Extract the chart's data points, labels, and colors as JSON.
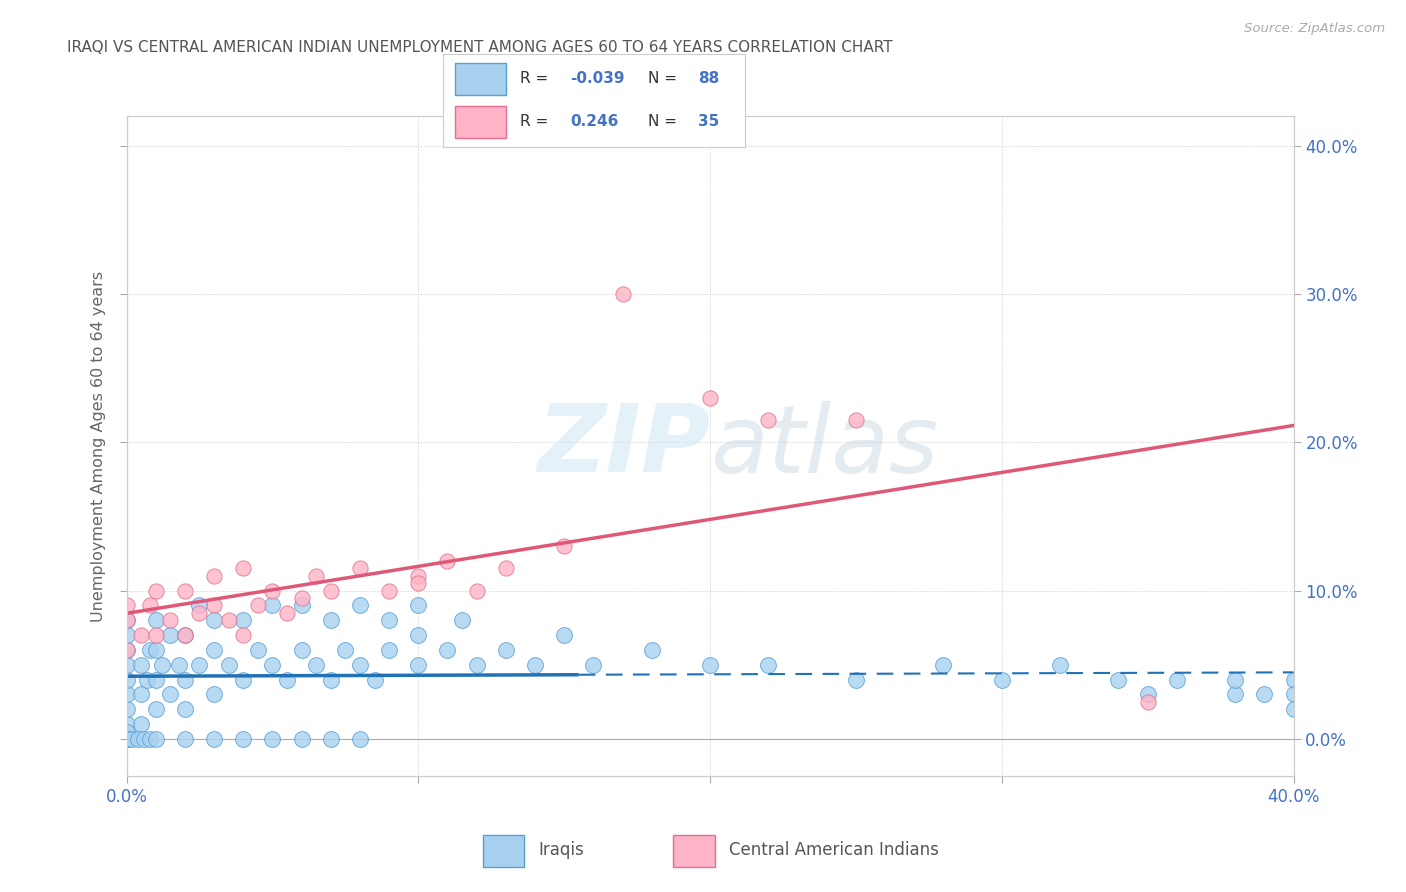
{
  "title": "IRAQI VS CENTRAL AMERICAN INDIAN UNEMPLOYMENT AMONG AGES 60 TO 64 YEARS CORRELATION CHART",
  "source": "Source: ZipAtlas.com",
  "ylabel": "Unemployment Among Ages 60 to 64 years",
  "xlim": [
    0.0,
    0.4
  ],
  "ylim": [
    -0.025,
    0.42
  ],
  "iraqi_color_fill": "#a8d1f0",
  "iraqi_color_edge": "#5a9fd4",
  "iraqi_line_color": "#2171b5",
  "central_color_fill": "#ffb3c6",
  "central_color_edge": "#e07090",
  "central_line_color": "#e05878",
  "iraqi_R": -0.039,
  "iraqi_N": 88,
  "central_R": 0.246,
  "central_N": 35,
  "title_color": "#555555",
  "source_color": "#aaaaaa",
  "axis_tick_color": "#4472c4",
  "grid_color": "#cccccc",
  "background_color": "#ffffff",
  "iraqi_x": [
    0.0,
    0.0,
    0.0,
    0.0,
    0.0,
    0.0,
    0.0,
    0.0,
    0.0,
    0.0,
    0.005,
    0.005,
    0.005,
    0.007,
    0.008,
    0.01,
    0.01,
    0.01,
    0.01,
    0.012,
    0.015,
    0.015,
    0.018,
    0.02,
    0.02,
    0.02,
    0.025,
    0.025,
    0.03,
    0.03,
    0.03,
    0.035,
    0.04,
    0.04,
    0.045,
    0.05,
    0.05,
    0.055,
    0.06,
    0.06,
    0.065,
    0.07,
    0.07,
    0.075,
    0.08,
    0.08,
    0.085,
    0.09,
    0.09,
    0.1,
    0.1,
    0.1,
    0.11,
    0.115,
    0.12,
    0.13,
    0.14,
    0.15,
    0.16,
    0.18,
    0.2,
    0.22,
    0.25,
    0.28,
    0.3,
    0.32,
    0.34,
    0.35,
    0.36,
    0.38,
    0.38,
    0.39,
    0.4,
    0.4,
    0.4,
    0.0,
    0.002,
    0.004,
    0.006,
    0.008,
    0.01,
    0.02,
    0.03,
    0.04,
    0.05,
    0.06,
    0.07,
    0.08
  ],
  "iraqi_y": [
    0.01,
    0.02,
    0.03,
    0.04,
    0.05,
    0.06,
    0.07,
    0.08,
    0.005,
    0.0,
    0.01,
    0.03,
    0.05,
    0.04,
    0.06,
    0.02,
    0.04,
    0.06,
    0.08,
    0.05,
    0.03,
    0.07,
    0.05,
    0.02,
    0.04,
    0.07,
    0.05,
    0.09,
    0.03,
    0.06,
    0.08,
    0.05,
    0.04,
    0.08,
    0.06,
    0.05,
    0.09,
    0.04,
    0.06,
    0.09,
    0.05,
    0.04,
    0.08,
    0.06,
    0.05,
    0.09,
    0.04,
    0.06,
    0.08,
    0.05,
    0.07,
    0.09,
    0.06,
    0.08,
    0.05,
    0.06,
    0.05,
    0.07,
    0.05,
    0.06,
    0.05,
    0.05,
    0.04,
    0.05,
    0.04,
    0.05,
    0.04,
    0.03,
    0.04,
    0.03,
    0.04,
    0.03,
    0.04,
    0.03,
    0.02,
    0.0,
    0.0,
    0.0,
    0.0,
    0.0,
    0.0,
    0.0,
    0.0,
    0.0,
    0.0,
    0.0,
    0.0,
    0.0
  ],
  "central_x": [
    0.0,
    0.0,
    0.0,
    0.005,
    0.008,
    0.01,
    0.01,
    0.015,
    0.02,
    0.02,
    0.025,
    0.03,
    0.03,
    0.035,
    0.04,
    0.04,
    0.045,
    0.05,
    0.055,
    0.06,
    0.065,
    0.07,
    0.08,
    0.09,
    0.1,
    0.11,
    0.12,
    0.13,
    0.15,
    0.17,
    0.2,
    0.22,
    0.25,
    0.35,
    0.1
  ],
  "central_y": [
    0.06,
    0.08,
    0.09,
    0.07,
    0.09,
    0.07,
    0.1,
    0.08,
    0.07,
    0.1,
    0.085,
    0.09,
    0.11,
    0.08,
    0.07,
    0.115,
    0.09,
    0.1,
    0.085,
    0.095,
    0.11,
    0.1,
    0.115,
    0.1,
    0.11,
    0.12,
    0.1,
    0.115,
    0.13,
    0.3,
    0.23,
    0.215,
    0.215,
    0.025,
    0.105
  ]
}
